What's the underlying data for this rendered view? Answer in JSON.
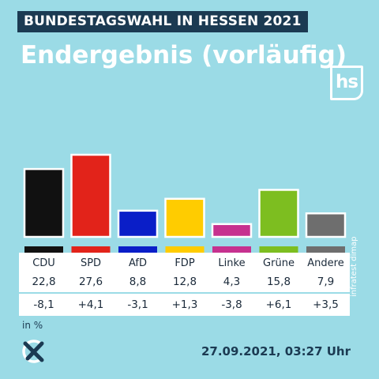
{
  "header": {
    "tag": "BUNDESTAGSWAHL IN HESSEN 2021",
    "title": "Endergebnis (vorläufig)",
    "logo_text": "hs"
  },
  "chart_data": {
    "type": "bar",
    "categories": [
      "CDU",
      "SPD",
      "AfD",
      "FDP",
      "Linke",
      "Grüne",
      "Andere"
    ],
    "values": [
      22.8,
      27.6,
      8.8,
      12.8,
      4.3,
      15.8,
      7.9
    ],
    "changes": [
      "-8,1",
      "+4,1",
      "-3,1",
      "+1,3",
      "-3,8",
      "+6,1",
      "+3,5"
    ],
    "value_labels": [
      "22,8",
      "27,6",
      "8,8",
      "12,8",
      "4,3",
      "15,8",
      "7,9"
    ],
    "colors": [
      "#111111",
      "#e2231a",
      "#0a1ec8",
      "#ffcc00",
      "#c6318f",
      "#7dbe20",
      "#6e6e6e"
    ],
    "ylim": [
      0,
      30
    ],
    "unit": "in %",
    "grid": false
  },
  "footer": {
    "source": "infratest dimap",
    "timestamp": "27.09.2021, 03:27 Uhr",
    "icon": "vote-cross-icon"
  }
}
